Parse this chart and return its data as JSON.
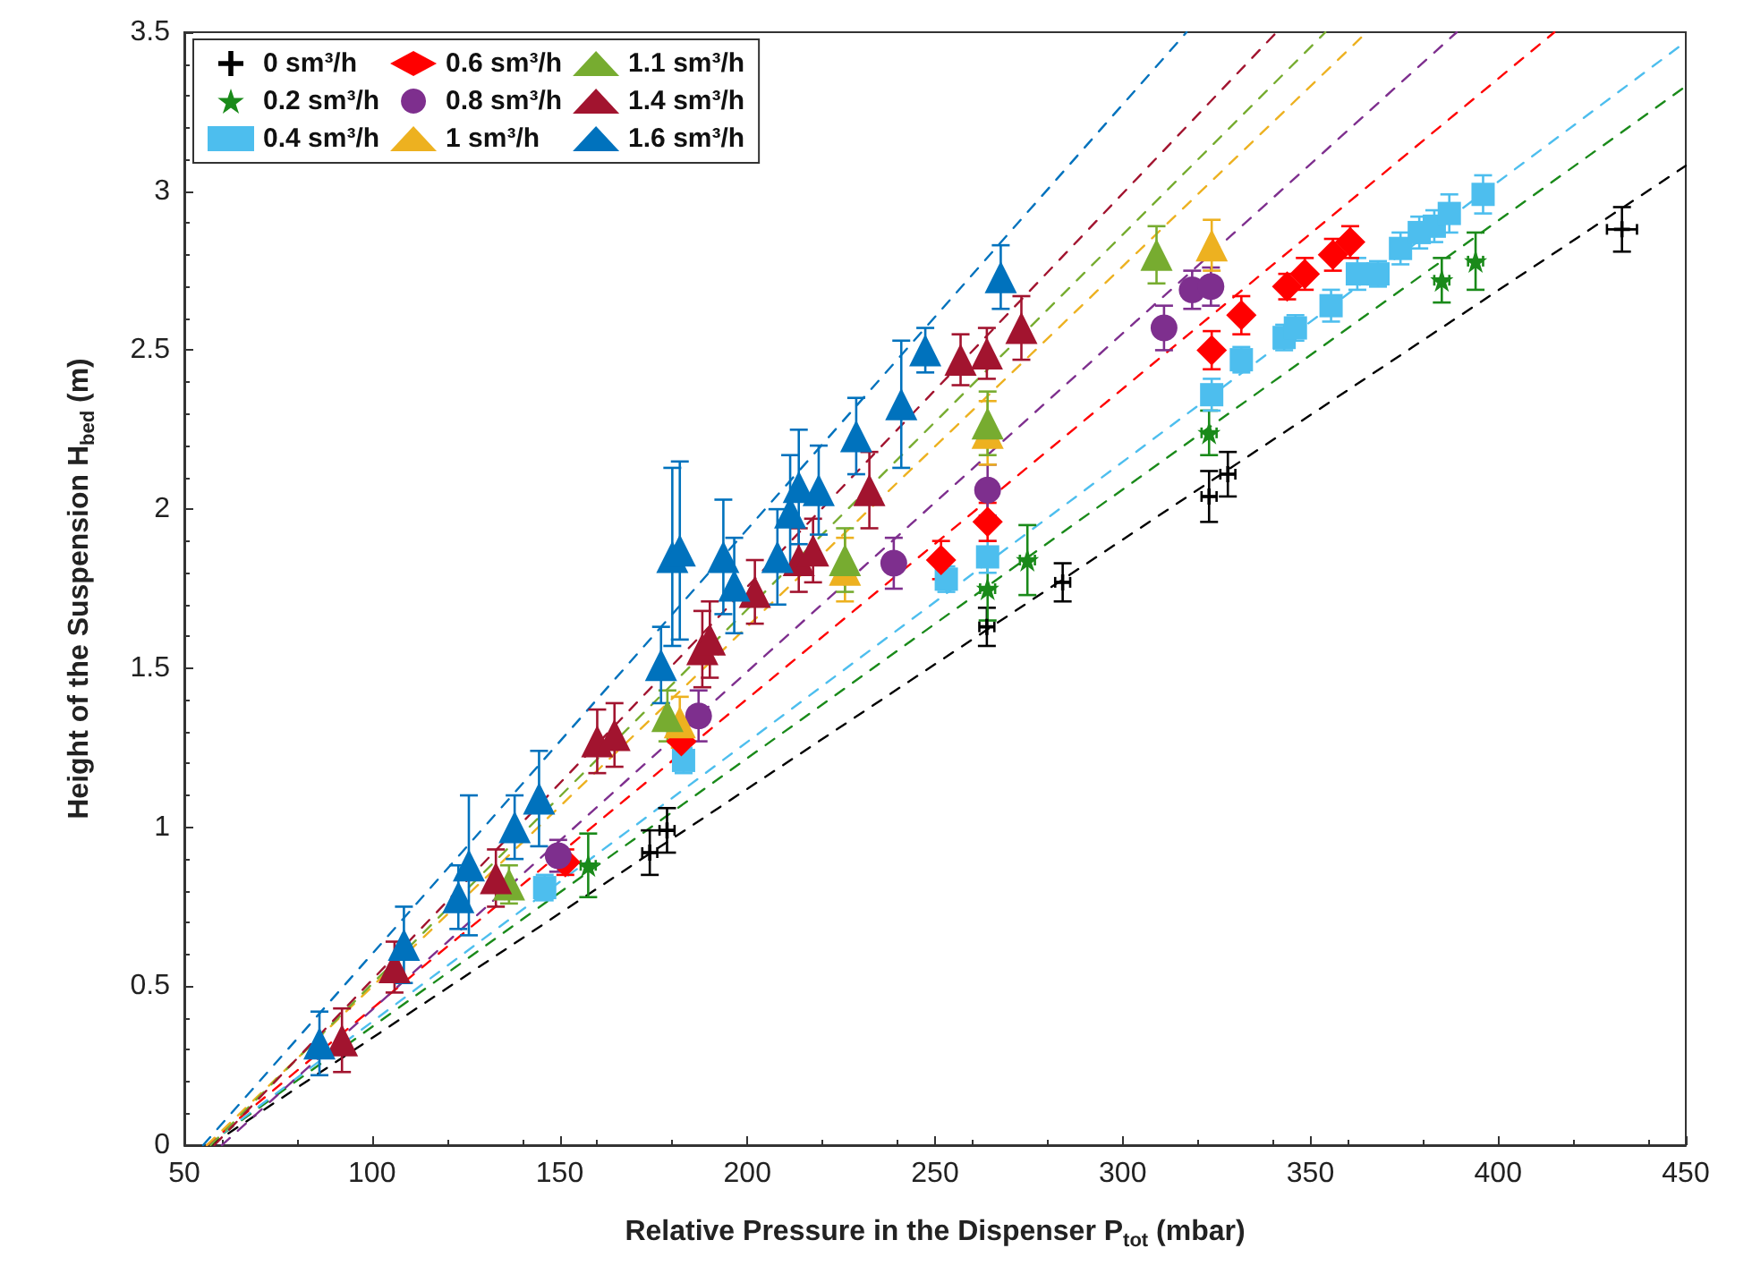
{
  "chart_data": {
    "type": "scatter",
    "xlabel": "Relative Pressure in the Dispenser P$_{tot}$ (mbar)",
    "ylabel": "Height of the Suspension H$_{bed}$ (m)",
    "xlim": [
      50,
      450
    ],
    "xticks": [
      50,
      100,
      150,
      200,
      250,
      300,
      350,
      400,
      450
    ],
    "ylim": [
      0,
      3.5
    ],
    "yticks": [
      0,
      0.5,
      1,
      1.5,
      2,
      2.5,
      3,
      3.5
    ],
    "grid": false,
    "legend": "top left",
    "series": [
      {
        "name": "0 sm³/h",
        "color": "#000000",
        "marker": "cross",
        "x": [
          174,
          178.6,
          263.8,
          284,
          323,
          328,
          433
        ],
        "values": [
          0.92,
          0.99,
          1.63,
          1.77,
          2.04,
          2.11,
          2.88
        ],
        "errors": [
          0.07,
          0.07,
          0.06,
          0.06,
          0.08,
          0.07,
          0.07
        ],
        "xerrors": [
          2,
          2,
          2,
          2,
          2,
          2,
          4
        ]
      },
      {
        "name": "0.2 sm³/h",
        "color": "#1a8a1a",
        "marker": "star",
        "x": [
          157.6,
          264,
          274.6,
          323,
          385,
          394
        ],
        "values": [
          0.88,
          1.75,
          1.84,
          2.24,
          2.72,
          2.78
        ],
        "errors": [
          0.1,
          0.1,
          0.11,
          0.07,
          0.07,
          0.09
        ],
        "xerrors": [
          2,
          2,
          2,
          2,
          2,
          2
        ]
      },
      {
        "name": "0.4 sm³/h",
        "color": "#4dbeee",
        "marker": "square",
        "x": [
          146,
          183,
          253,
          264,
          323.7,
          331.6,
          343,
          346,
          355.5,
          362.5,
          368,
          374,
          379,
          383,
          387,
          396
        ],
        "values": [
          0.81,
          1.21,
          1.78,
          1.85,
          2.36,
          2.47,
          2.54,
          2.57,
          2.64,
          2.74,
          2.74,
          2.82,
          2.87,
          2.89,
          2.93,
          2.99
        ],
        "errors": [
          0.04,
          0.04,
          0.04,
          0.05,
          0.05,
          0.04,
          0.04,
          0.04,
          0.05,
          0.05,
          0.04,
          0.05,
          0.05,
          0.05,
          0.06,
          0.06
        ]
      },
      {
        "name": "0.6 sm³/h",
        "color": "#ff0000",
        "marker": "diamond",
        "x": [
          151.5,
          182.4,
          251.6,
          264,
          323.7,
          331.6,
          343.8,
          348.5,
          356,
          360.6
        ],
        "values": [
          0.89,
          1.27,
          1.84,
          1.96,
          2.5,
          2.61,
          2.7,
          2.74,
          2.8,
          2.84
        ],
        "errors": [
          0.04,
          0.05,
          0.06,
          0.06,
          0.06,
          0.06,
          0.04,
          0.05,
          0.05,
          0.05
        ]
      },
      {
        "name": "0.8 sm³/h",
        "color": "#7e2f8e",
        "marker": "circle",
        "x": [
          149.6,
          187,
          239,
          264,
          311,
          318.5,
          323.5
        ],
        "values": [
          0.91,
          1.35,
          1.83,
          2.06,
          2.57,
          2.69,
          2.7
        ],
        "errors": [
          0.05,
          0.08,
          0.08,
          0.08,
          0.07,
          0.06,
          0.06
        ]
      },
      {
        "name": "1 sm³/h",
        "color": "#edb120",
        "marker": "triangle",
        "x": [
          182,
          226,
          264,
          323.7
        ],
        "values": [
          1.33,
          1.81,
          2.24,
          2.83
        ],
        "errors": [
          0.08,
          0.1,
          0.1,
          0.08
        ]
      },
      {
        "name": "1.1 sm³/h",
        "color": "#77ac30",
        "marker": "triangle",
        "x": [
          136.5,
          178.7,
          226,
          264,
          309
        ],
        "values": [
          0.82,
          1.35,
          1.84,
          2.27,
          2.8
        ],
        "errors": [
          0.06,
          0.08,
          0.1,
          0.1,
          0.09
        ]
      },
      {
        "name": "1.4 sm³/h",
        "color": "#a2142f",
        "marker": "triangle",
        "x": [
          92,
          106,
          133,
          160,
          164.6,
          188,
          190,
          202,
          213.7,
          217.5,
          232.5,
          256.8,
          263.8,
          273
        ],
        "values": [
          0.33,
          0.56,
          0.84,
          1.27,
          1.29,
          1.56,
          1.59,
          1.74,
          1.84,
          1.87,
          2.06,
          2.47,
          2.49,
          2.57
        ],
        "errors": [
          0.1,
          0.08,
          0.09,
          0.1,
          0.1,
          0.12,
          0.12,
          0.1,
          0.1,
          0.1,
          0.12,
          0.08,
          0.08,
          0.1
        ]
      },
      {
        "name": "1.6 sm³/h",
        "color": "#0072bd",
        "marker": "triangle",
        "x": [
          86,
          108.5,
          123,
          125.8,
          138,
          144.5,
          177,
          180,
          182,
          193.6,
          196.5,
          208,
          211.4,
          213.7,
          219,
          229,
          241,
          247.4,
          267.5
        ],
        "values": [
          0.32,
          0.63,
          0.78,
          0.88,
          1.0,
          1.09,
          1.51,
          1.85,
          1.87,
          1.85,
          1.76,
          1.85,
          1.99,
          2.07,
          2.06,
          2.23,
          2.33,
          2.5,
          2.73
        ],
        "errors": [
          0.1,
          0.12,
          0.1,
          0.22,
          0.1,
          0.15,
          0.12,
          0.28,
          0.28,
          0.18,
          0.15,
          0.15,
          0.18,
          0.18,
          0.14,
          0.12,
          0.2,
          0.07,
          0.1
        ]
      },
      {
        "type": "line",
        "color": "#000000",
        "line_style": "dashed",
        "marker": "none",
        "x": [
          57,
          450
        ],
        "values": [
          0,
          3.08
        ]
      },
      {
        "type": "line",
        "color": "#1a8a1a",
        "line_style": "dashed",
        "marker": "none",
        "x": [
          56,
          450
        ],
        "values": [
          0,
          3.33
        ]
      },
      {
        "type": "line",
        "color": "#4dbeee",
        "line_style": "dashed",
        "marker": "none",
        "x": [
          56,
          450
        ],
        "values": [
          0,
          3.47
        ]
      },
      {
        "type": "line",
        "color": "#ff0000",
        "line_style": "dashed",
        "marker": "none",
        "x": [
          56,
          415
        ],
        "values": [
          0,
          3.5
        ]
      },
      {
        "type": "line",
        "color": "#7e2f8e",
        "line_style": "dashed",
        "marker": "none",
        "x": [
          60,
          389
        ],
        "values": [
          0,
          3.5
        ]
      },
      {
        "type": "line",
        "color": "#edb120",
        "line_style": "dashed",
        "marker": "none",
        "x": [
          56,
          365
        ],
        "values": [
          0,
          3.5
        ]
      },
      {
        "type": "line",
        "color": "#77ac30",
        "line_style": "dashed",
        "marker": "none",
        "x": [
          57,
          354
        ],
        "values": [
          0,
          3.5
        ]
      },
      {
        "type": "line",
        "color": "#a2142f",
        "line_style": "dashed",
        "marker": "none",
        "x": [
          58,
          341
        ],
        "values": [
          0,
          3.5
        ]
      },
      {
        "type": "line",
        "color": "#0072bd",
        "line_style": "dashed",
        "marker": "none",
        "x": [
          55,
          317
        ],
        "values": [
          0,
          3.5
        ]
      }
    ]
  }
}
